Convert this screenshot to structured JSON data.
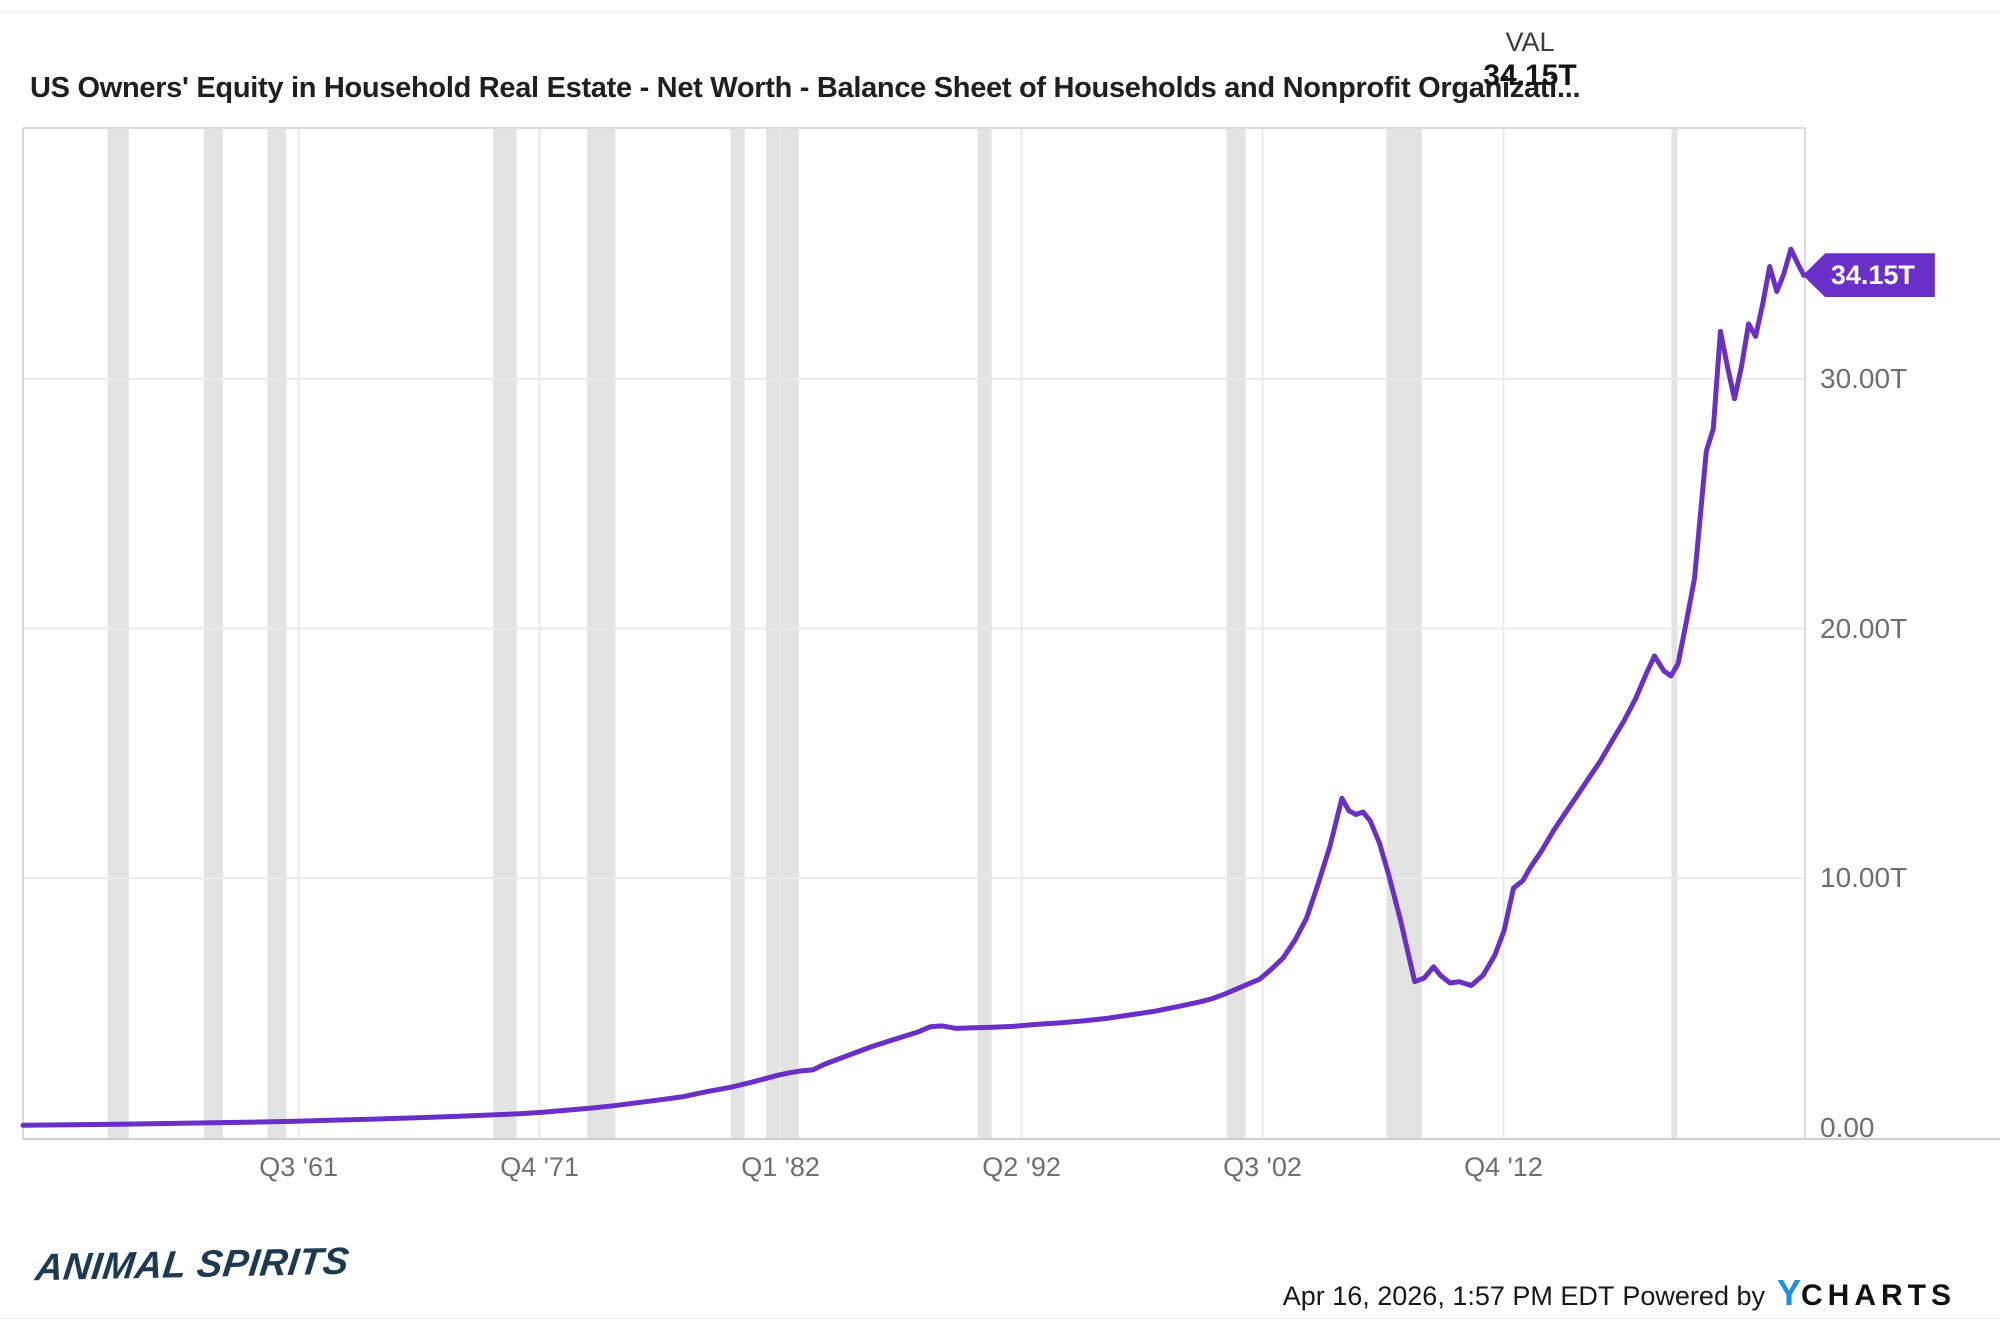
{
  "header": {
    "title": "US Owners' Equity in Household Real Estate - Net Worth - Balance Sheet of Households and Nonprofit Organizati...",
    "val_label": "VAL",
    "val_value": "34.15T"
  },
  "badge": {
    "label": "34.15T"
  },
  "y_axis": {
    "ticks": [
      {
        "value": 0,
        "label": "0.00"
      },
      {
        "value": 10,
        "label": "10.00T"
      },
      {
        "value": 20,
        "label": "20.00T"
      },
      {
        "value": 30,
        "label": "30.00T"
      }
    ]
  },
  "x_axis": {
    "ticks": [
      {
        "year": 1961.625,
        "label": "Q3 '61"
      },
      {
        "year": 1971.875,
        "label": "Q4 '71"
      },
      {
        "year": 1982.125,
        "label": "Q1 '82"
      },
      {
        "year": 1992.375,
        "label": "Q2 '92"
      },
      {
        "year": 2002.625,
        "label": "Q3 '02"
      },
      {
        "year": 2012.875,
        "label": "Q4 '12"
      }
    ]
  },
  "chart_data": {
    "type": "line",
    "title": "US Owners' Equity in Household Real Estate - Net Worth - Balance Sheet of Households and Nonprofit Organizati...",
    "xlabel": "",
    "ylabel": "",
    "x_range": [
      1949.9,
      2025.7
    ],
    "y_range": [
      -0.45,
      40.05
    ],
    "grid": true,
    "last_value": "34.15T",
    "series": [
      {
        "name": "US Owners' Equity in Household Real Estate",
        "units": "trillions USD",
        "points": [
          [
            1949.9,
            0.1
          ],
          [
            1952,
            0.12
          ],
          [
            1954,
            0.14
          ],
          [
            1956,
            0.17
          ],
          [
            1958,
            0.2
          ],
          [
            1960,
            0.23
          ],
          [
            1961.5,
            0.26
          ],
          [
            1963,
            0.3
          ],
          [
            1965,
            0.35
          ],
          [
            1967,
            0.41
          ],
          [
            1969,
            0.48
          ],
          [
            1970,
            0.52
          ],
          [
            1971,
            0.56
          ],
          [
            1972,
            0.62
          ],
          [
            1973,
            0.7
          ],
          [
            1974,
            0.78
          ],
          [
            1975,
            0.88
          ],
          [
            1976,
            1.0
          ],
          [
            1977,
            1.12
          ],
          [
            1978,
            1.25
          ],
          [
            1979,
            1.45
          ],
          [
            1980,
            1.62
          ],
          [
            1981,
            1.85
          ],
          [
            1982,
            2.1
          ],
          [
            1982.5,
            2.2
          ],
          [
            1983,
            2.28
          ],
          [
            1983.5,
            2.32
          ],
          [
            1984,
            2.55
          ],
          [
            1985,
            2.9
          ],
          [
            1986,
            3.25
          ],
          [
            1987,
            3.55
          ],
          [
            1988,
            3.85
          ],
          [
            1988.5,
            4.05
          ],
          [
            1989,
            4.08
          ],
          [
            1989.6,
            3.98
          ],
          [
            1990.2,
            4.0
          ],
          [
            1991,
            4.02
          ],
          [
            1992,
            4.06
          ],
          [
            1992.5,
            4.1
          ],
          [
            1993,
            4.14
          ],
          [
            1994,
            4.2
          ],
          [
            1995,
            4.28
          ],
          [
            1996,
            4.38
          ],
          [
            1997,
            4.52
          ],
          [
            1998,
            4.66
          ],
          [
            1999,
            4.85
          ],
          [
            2000,
            5.05
          ],
          [
            2000.5,
            5.18
          ],
          [
            2001,
            5.35
          ],
          [
            2001.5,
            5.55
          ],
          [
            2002,
            5.75
          ],
          [
            2002.5,
            5.95
          ],
          [
            2003,
            6.35
          ],
          [
            2003.5,
            6.8
          ],
          [
            2004,
            7.5
          ],
          [
            2004.5,
            8.4
          ],
          [
            2005,
            9.8
          ],
          [
            2005.5,
            11.3
          ],
          [
            2006,
            13.2
          ],
          [
            2006.3,
            12.7
          ],
          [
            2006.6,
            12.55
          ],
          [
            2006.9,
            12.65
          ],
          [
            2007.2,
            12.3
          ],
          [
            2007.6,
            11.4
          ],
          [
            2008,
            10.1
          ],
          [
            2008.5,
            8.3
          ],
          [
            2009.1,
            5.85
          ],
          [
            2009.5,
            6.0
          ],
          [
            2009.9,
            6.45
          ],
          [
            2010.2,
            6.1
          ],
          [
            2010.6,
            5.8
          ],
          [
            2011,
            5.85
          ],
          [
            2011.5,
            5.7
          ],
          [
            2012,
            6.1
          ],
          [
            2012.5,
            6.9
          ],
          [
            2012.9,
            7.9
          ],
          [
            2013.3,
            9.6
          ],
          [
            2013.7,
            9.9
          ],
          [
            2014,
            10.4
          ],
          [
            2014.5,
            11.1
          ],
          [
            2015,
            11.9
          ],
          [
            2015.5,
            12.6
          ],
          [
            2016,
            13.3
          ],
          [
            2016.5,
            14.0
          ],
          [
            2017,
            14.7
          ],
          [
            2017.5,
            15.5
          ],
          [
            2018,
            16.3
          ],
          [
            2018.5,
            17.2
          ],
          [
            2019,
            18.3
          ],
          [
            2019.3,
            18.9
          ],
          [
            2019.7,
            18.3
          ],
          [
            2020.0,
            18.1
          ],
          [
            2020.3,
            18.6
          ],
          [
            2020.7,
            20.5
          ],
          [
            2021,
            22.0
          ],
          [
            2021.5,
            27.1
          ],
          [
            2021.8,
            28.0
          ],
          [
            2022.1,
            31.9
          ],
          [
            2022.4,
            30.5
          ],
          [
            2022.7,
            29.2
          ],
          [
            2023.0,
            30.5
          ],
          [
            2023.3,
            32.2
          ],
          [
            2023.6,
            31.7
          ],
          [
            2023.9,
            33.0
          ],
          [
            2024.2,
            34.5
          ],
          [
            2024.5,
            33.5
          ],
          [
            2024.8,
            34.2
          ],
          [
            2025.1,
            35.2
          ],
          [
            2025.4,
            34.6
          ],
          [
            2025.65,
            34.15
          ]
        ]
      }
    ],
    "recession_bands": [
      [
        1953.5,
        1954.4
      ],
      [
        1957.6,
        1958.4
      ],
      [
        1960.3,
        1961.1
      ],
      [
        1969.9,
        1970.9
      ],
      [
        1973.9,
        1975.1
      ],
      [
        1980.0,
        1980.6
      ],
      [
        1981.5,
        1982.9
      ],
      [
        1990.5,
        1991.1
      ],
      [
        2001.1,
        2001.9
      ],
      [
        2007.9,
        2009.4
      ],
      [
        2020.02,
        2020.27
      ]
    ]
  },
  "footer": {
    "brand": "ANIMAL SPIRITS",
    "timestamp": "Apr 16, 2026, 1:57 PM EDT",
    "powered_by": "Powered by",
    "ycharts_y": "Y",
    "ycharts_rest": "CHARTS"
  },
  "colors": {
    "line": "#6b2fc9",
    "badge_bg": "#6b2fc9",
    "recession_band": "#e3e3e3",
    "gridline": "#eaeaea",
    "plot_border": "#dcdcdc",
    "axis_bottom": "#cfcfcf",
    "axis_text": "#6f6f6f",
    "brand_navy": "#1d3a50",
    "ycharts_blue": "#1a8fe3"
  }
}
